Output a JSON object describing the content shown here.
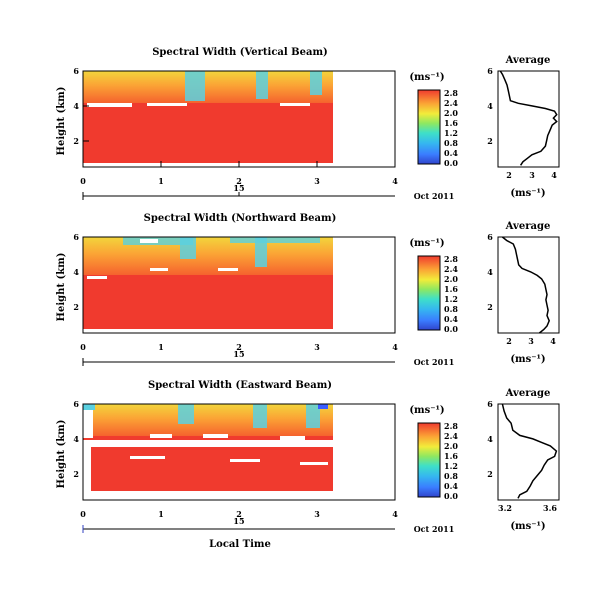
{
  "figure": {
    "date_label": "Oct 2011",
    "bottom_xlabel": "Local Time"
  },
  "chart_data": [
    {
      "type": "heatmap",
      "title": "Spectral Width (Vertical Beam)",
      "xlabel": "",
      "ylabel": "Height (km)",
      "xlim": [
        0,
        4
      ],
      "ylim": [
        0.5,
        6
      ],
      "x_ticks": [
        "0",
        "1",
        "2",
        "3",
        "4"
      ],
      "y_ticks": [
        "2",
        "4",
        "6"
      ],
      "sub_axis_tick": "15",
      "data_extent_x": [
        0,
        3.2
      ],
      "colorbar": {
        "label": "(ms⁻¹)",
        "ticks": [
          "0.0",
          "0.4",
          "0.8",
          "1.2",
          "1.6",
          "2.0",
          "2.4",
          "2.8"
        ],
        "range": [
          0,
          2.9
        ]
      },
      "profile": {
        "title": "Average",
        "xlabel": "(ms⁻¹)",
        "x_ticks": [
          "2",
          "3",
          "4"
        ],
        "xlim": [
          1.5,
          4.2
        ],
        "y_ticks": [
          "2",
          "4",
          "6"
        ],
        "ylim": [
          0.5,
          6
        ],
        "points": [
          [
            1.6,
            6.0
          ],
          [
            1.7,
            5.8
          ],
          [
            1.8,
            5.5
          ],
          [
            1.9,
            5.2
          ],
          [
            1.95,
            4.9
          ],
          [
            2.0,
            4.6
          ],
          [
            2.05,
            4.3
          ],
          [
            2.4,
            4.15
          ],
          [
            3.0,
            4.0
          ],
          [
            3.6,
            3.85
          ],
          [
            4.0,
            3.7
          ],
          [
            4.1,
            3.5
          ],
          [
            3.95,
            3.3
          ],
          [
            4.1,
            3.1
          ],
          [
            3.9,
            2.9
          ],
          [
            3.8,
            2.6
          ],
          [
            3.7,
            2.3
          ],
          [
            3.65,
            2.0
          ],
          [
            3.6,
            1.7
          ],
          [
            3.4,
            1.4
          ],
          [
            3.0,
            1.2
          ],
          [
            2.8,
            1.0
          ],
          [
            2.6,
            0.8
          ],
          [
            2.5,
            0.6
          ]
        ]
      }
    },
    {
      "type": "heatmap",
      "title": "Spectral Width (Northward Beam)",
      "xlabel": "",
      "ylabel": "Height (km)",
      "xlim": [
        0,
        4
      ],
      "ylim": [
        0.5,
        6
      ],
      "x_ticks": [
        "0",
        "1",
        "2",
        "3",
        "4"
      ],
      "y_ticks": [
        "2",
        "4",
        "6"
      ],
      "sub_axis_tick": "15",
      "data_extent_x": [
        0,
        3.2
      ],
      "colorbar": {
        "label": "(ms⁻¹)",
        "ticks": [
          "0.0",
          "0.4",
          "0.8",
          "1.2",
          "1.6",
          "2.0",
          "2.4",
          "2.8"
        ],
        "range": [
          0,
          2.9
        ]
      },
      "profile": {
        "title": "Average",
        "xlabel": "(ms⁻¹)",
        "x_ticks": [
          "2",
          "3",
          "4"
        ],
        "xlim": [
          1.5,
          4.3
        ],
        "y_ticks": [
          "2",
          "4",
          "6"
        ],
        "ylim": [
          0.5,
          6
        ],
        "points": [
          [
            1.7,
            6.0
          ],
          [
            1.9,
            5.8
          ],
          [
            2.2,
            5.6
          ],
          [
            2.3,
            5.3
          ],
          [
            2.35,
            5.0
          ],
          [
            2.4,
            4.7
          ],
          [
            2.45,
            4.4
          ],
          [
            2.6,
            4.2
          ],
          [
            3.0,
            4.0
          ],
          [
            3.3,
            3.8
          ],
          [
            3.5,
            3.6
          ],
          [
            3.65,
            3.3
          ],
          [
            3.7,
            3.0
          ],
          [
            3.75,
            2.7
          ],
          [
            3.7,
            2.4
          ],
          [
            3.75,
            2.1
          ],
          [
            3.8,
            1.8
          ],
          [
            3.75,
            1.5
          ],
          [
            3.85,
            1.2
          ],
          [
            3.75,
            0.9
          ],
          [
            3.6,
            0.7
          ],
          [
            3.4,
            0.5
          ]
        ]
      }
    },
    {
      "type": "heatmap",
      "title": "Spectral Width (Eastward Beam)",
      "xlabel": "Local Time",
      "ylabel": "Height (km)",
      "xlim": [
        0,
        4
      ],
      "ylim": [
        0.5,
        6
      ],
      "x_ticks": [
        "0",
        "1",
        "2",
        "3",
        "4"
      ],
      "y_ticks": [
        "2",
        "4",
        "6"
      ],
      "sub_axis_tick": "15",
      "data_extent_x": [
        0,
        3.2
      ],
      "colorbar": {
        "label": "(ms⁻¹)",
        "ticks": [
          "0.0",
          "0.4",
          "0.8",
          "1.2",
          "1.6",
          "2.0",
          "2.4",
          "2.8"
        ],
        "range": [
          0,
          2.9
        ]
      },
      "profile": {
        "title": "Average",
        "xlabel": "(ms⁻¹)",
        "x_ticks": [
          "3.2",
          "3.6"
        ],
        "xlim": [
          3.05,
          3.75
        ],
        "y_ticks": [
          "2",
          "4",
          "6"
        ],
        "ylim": [
          0.5,
          6
        ],
        "points": [
          [
            3.1,
            6.0
          ],
          [
            3.12,
            5.6
          ],
          [
            3.15,
            5.2
          ],
          [
            3.2,
            4.9
          ],
          [
            3.22,
            4.5
          ],
          [
            3.3,
            4.2
          ],
          [
            3.45,
            4.0
          ],
          [
            3.55,
            3.8
          ],
          [
            3.65,
            3.6
          ],
          [
            3.72,
            3.3
          ],
          [
            3.7,
            3.0
          ],
          [
            3.62,
            2.8
          ],
          [
            3.58,
            2.5
          ],
          [
            3.55,
            2.2
          ],
          [
            3.5,
            1.9
          ],
          [
            3.45,
            1.6
          ],
          [
            3.42,
            1.3
          ],
          [
            3.38,
            1.0
          ],
          [
            3.3,
            0.8
          ],
          [
            3.28,
            0.6
          ]
        ]
      }
    }
  ]
}
